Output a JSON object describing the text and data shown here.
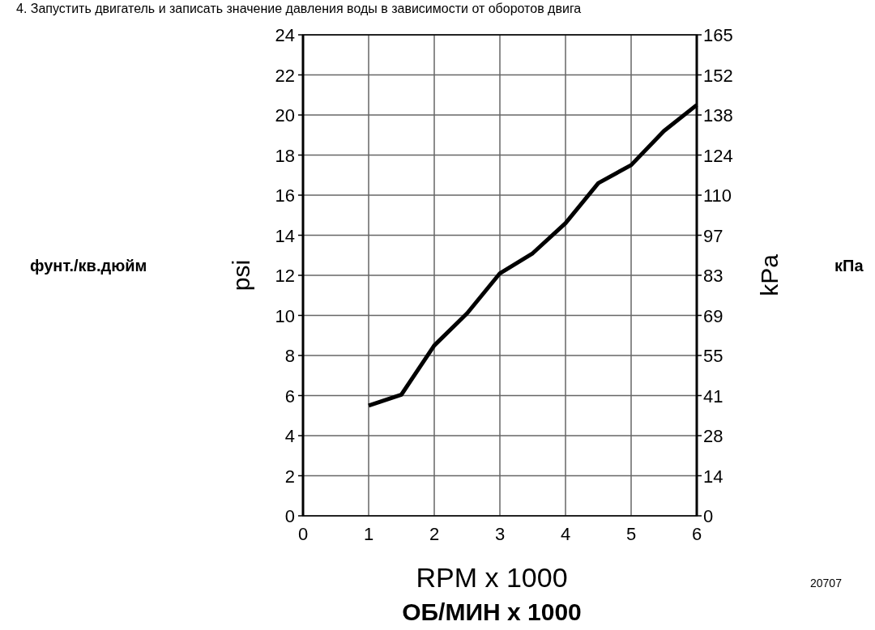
{
  "chart_data": {
    "type": "line",
    "title": "4. Запустить двигатель и записать значение давления воды в зависимости от оборотов двига",
    "xlabel": "RPM x 1000",
    "ylabel": "psi",
    "y2label": "kPa",
    "annotations": [
      "фунт./кв.дюйм",
      "кПа",
      "ОБ/МИН x 1000",
      "20707"
    ],
    "x": [
      1,
      1.5,
      2,
      2.5,
      3,
      3.5,
      4,
      4.5,
      5,
      5.5,
      6
    ],
    "series": [
      {
        "color": "#000000",
        "values": [
          5.5,
          6.05,
          8.5,
          10.1,
          12.1,
          13.1,
          14.6,
          16.6,
          17.5,
          19.2,
          20.5
        ]
      }
    ],
    "xlim": [
      0,
      6
    ],
    "xticks": [
      0,
      1,
      2,
      3,
      4,
      5,
      6
    ],
    "ylim": [
      0,
      24
    ],
    "yticks": [
      0,
      2,
      4,
      6,
      8,
      10,
      12,
      14,
      16,
      18,
      20,
      22,
      24
    ],
    "y2lim": [
      0,
      165.48
    ],
    "y2ticks": [
      0,
      {
        "value": 13.79,
        "label": "14"
      },
      {
        "value": 27.58,
        "label": "28"
      },
      {
        "value": 41.37,
        "label": "41"
      },
      {
        "value": 55.16,
        "label": "55"
      },
      {
        "value": 68.95,
        "label": "69"
      },
      {
        "value": 82.74,
        "label": "83"
      },
      {
        "value": 96.53,
        "label": "97"
      },
      {
        "value": 110.32,
        "label": "110"
      },
      {
        "value": 124.11,
        "label": "124"
      },
      {
        "value": 137.9,
        "label": "138"
      },
      {
        "value": 151.69,
        "label": "152"
      },
      {
        "value": 165.48,
        "label": "165"
      }
    ],
    "grid": true,
    "marker": "none",
    "line_style": "solid"
  }
}
